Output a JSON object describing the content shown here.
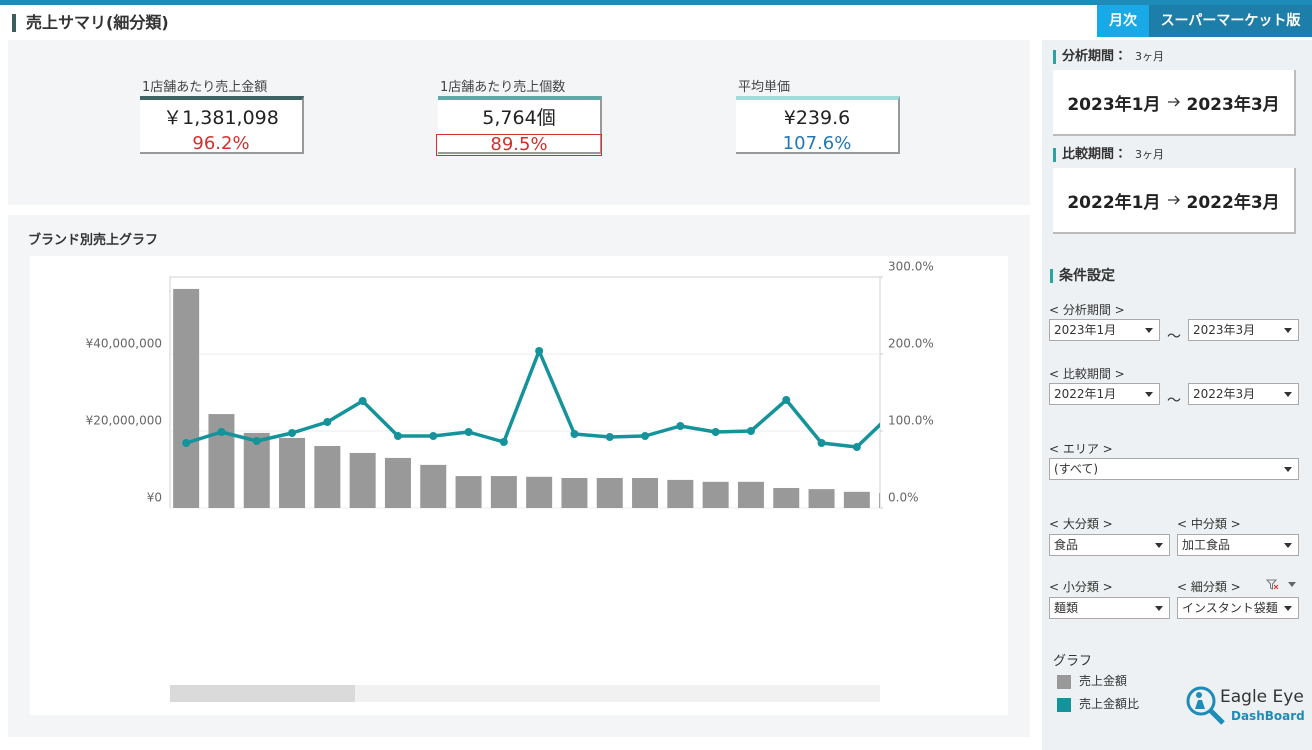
{
  "header": {
    "title": "売上サマリ(細分類)",
    "tab_active": "月次",
    "tab_edition": "スーパーマーケット版"
  },
  "kpis": [
    {
      "label": "1店舗あたり売上金額",
      "value": "￥1,381,098",
      "ratio": "96.2%"
    },
    {
      "label": "1店舗あたり売上個数",
      "value": "5,764個",
      "ratio": "89.5%"
    },
    {
      "label": "平均単価",
      "value": "¥239.6",
      "ratio": "107.6%"
    }
  ],
  "chart_data": {
    "type": "bar",
    "title": "ブランド別売上グラフ",
    "categories": [
      null,
      null,
      null,
      null,
      null,
      null,
      null,
      null,
      null,
      null,
      null,
      null,
      null,
      null,
      null,
      null,
      null,
      null,
      null,
      null,
      null
    ],
    "series": [
      {
        "name": "売上金額",
        "color": "#999999",
        "values": [
          56900000,
          24400000,
          19500000,
          18200000,
          16100000,
          14300000,
          13000000,
          11200000,
          8300000,
          8300000,
          8100000,
          7800000,
          7800000,
          7800000,
          7300000,
          6800000,
          6800000,
          5200000,
          4900000,
          4200000,
          3900000
        ]
      },
      {
        "name": "売上金額比",
        "color": "#14939b",
        "type": "line",
        "axis": "y2",
        "values": [
          84.4,
          98.7,
          87,
          97.4,
          111.7,
          139,
          93.5,
          93.5,
          98.7,
          85.7,
          203.9,
          96.1,
          92.2,
          93.5,
          106.5,
          98.7,
          100,
          140.3,
          84.4,
          79.2,
          123
        ]
      }
    ],
    "ylim": [
      0,
      60000000
    ],
    "yticks": [
      {
        "value": 0,
        "label": "¥0"
      },
      {
        "value": 20000000,
        "label": "¥20,000,000"
      },
      {
        "value": 40000000,
        "label": "¥40,000,000"
      }
    ],
    "y2lim": [
      0,
      300
    ],
    "y2ticks": [
      {
        "value": 0,
        "label": "0.0%"
      },
      {
        "value": 100,
        "label": "100.0%"
      },
      {
        "value": 200,
        "label": "200.0%"
      },
      {
        "value": 300,
        "label": "300.0%"
      }
    ],
    "grid": true
  },
  "sidebar": {
    "analysis_period": {
      "label": "分析期間：",
      "duration": "3ヶ月",
      "from": "2023年1月",
      "to": "2023年3月"
    },
    "compare_period": {
      "label": "比較期間：",
      "duration": "3ヶ月",
      "from": "2022年1月",
      "to": "2022年3月"
    },
    "conditions_title": "条件設定",
    "range_separator": "～",
    "filters": {
      "analysis": {
        "label": "< 分析期間 >",
        "from": "2023年1月",
        "to": "2023年3月"
      },
      "compare": {
        "label": "< 比較期間 >",
        "from": "2022年1月",
        "to": "2022年3月"
      },
      "area": {
        "label": "< エリア >",
        "value": "(すべて)"
      },
      "major": {
        "label": "< 大分類 >",
        "value": "食品"
      },
      "middle": {
        "label": "< 中分類 >",
        "value": "加工食品"
      },
      "minor": {
        "label": "< 小分類 >",
        "value": "麺類"
      },
      "detail": {
        "label": "< 細分類 >",
        "value": "インスタント袋麺"
      }
    },
    "legend_title": "グラフ"
  },
  "branding": {
    "name": "Eagle Eye",
    "product": "DashBoard"
  }
}
